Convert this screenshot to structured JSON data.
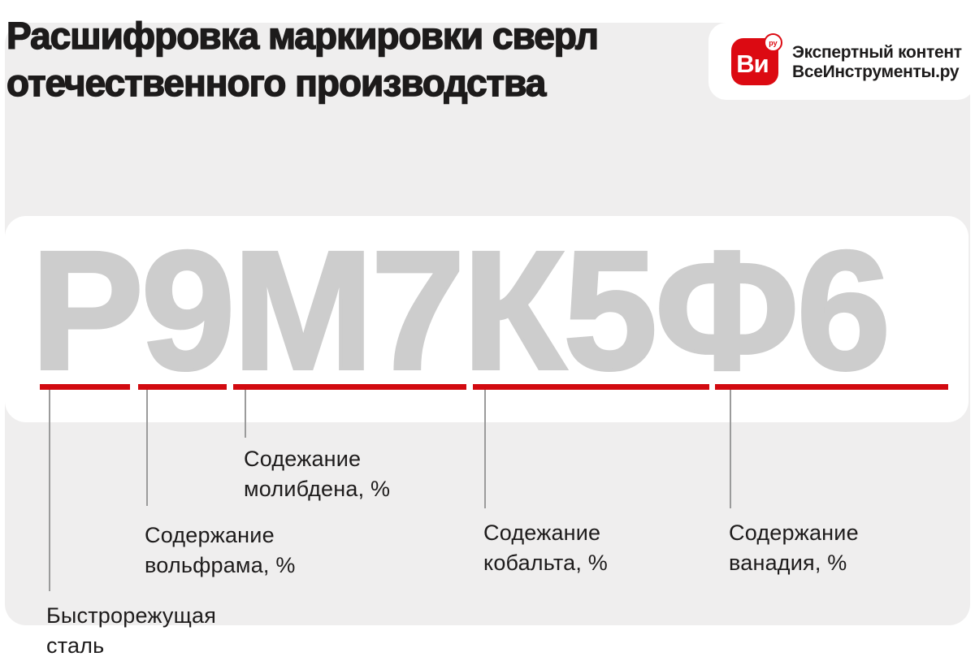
{
  "title": "Расшифровка маркировки сверл\nотечественного производства",
  "brand": {
    "icon_text": "Ви",
    "icon_badge": "ру",
    "caption": "Экспертный контент\nВсеИнструменты.ру"
  },
  "marking": {
    "code": "Р9М7К5Ф6"
  },
  "segments": [
    {
      "code_part": "Р",
      "label": "Быстрорежущая\nсталь"
    },
    {
      "code_part": "9",
      "label": "Содержание\nвольфрама, %"
    },
    {
      "code_part": "М7",
      "label": "Содежание\nмолибдена, %"
    },
    {
      "code_part": "К5",
      "label": "Содежание\nкобальта, %"
    },
    {
      "code_part": "Ф6",
      "label": "Содержание\nванадия, %"
    }
  ],
  "colors": {
    "accent_red": "#d20a10",
    "brand_red": "#dc0a12",
    "marking_gray": "#cdcdcd",
    "panel_gray": "#efeeee",
    "text_dark": "#1d1b1b",
    "connector_gray": "#9b9b9b",
    "card_white": "#ffffff"
  }
}
